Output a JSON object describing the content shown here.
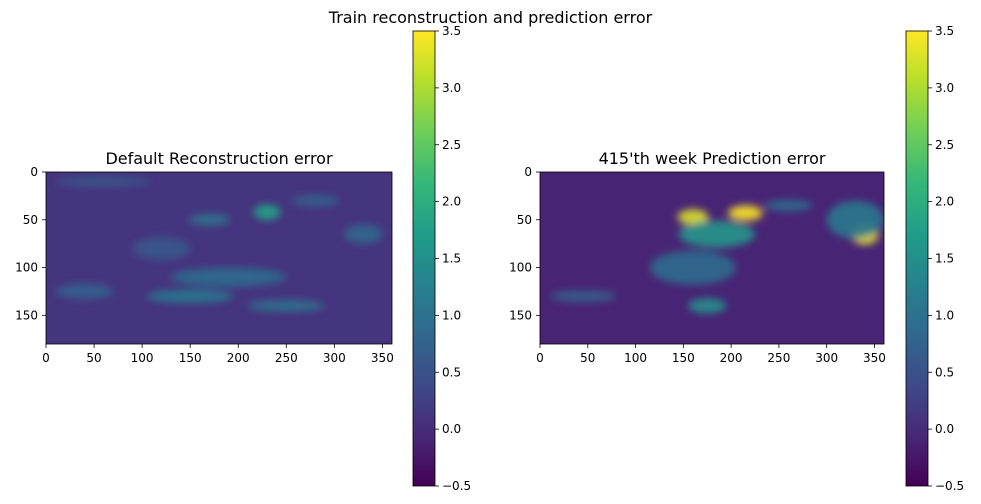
{
  "figure": {
    "suptitle": "Train reconstruction and prediction error"
  },
  "chart_data": [
    {
      "type": "heatmap",
      "title": "Default Reconstruction error",
      "xlabel": "",
      "ylabel": "",
      "x_ticks": [
        0,
        50,
        100,
        150,
        200,
        250,
        300,
        350
      ],
      "y_ticks": [
        0,
        50,
        100,
        150
      ],
      "xlim": [
        0,
        360
      ],
      "ylim": [
        180,
        0
      ],
      "colormap": "viridis",
      "colorbar": {
        "min": -0.5,
        "max": 3.5,
        "ticks": [
          -0.5,
          0.0,
          0.5,
          1.0,
          1.5,
          2.0,
          2.5,
          3.0,
          3.5
        ]
      },
      "background_value": 0.1,
      "hotspots": [
        {
          "x": 230,
          "y": 42,
          "rx": 14,
          "ry": 8,
          "value": 1.8
        },
        {
          "x": 170,
          "y": 50,
          "rx": 22,
          "ry": 6,
          "value": 1.0
        },
        {
          "x": 190,
          "y": 110,
          "rx": 60,
          "ry": 10,
          "value": 0.9
        },
        {
          "x": 150,
          "y": 130,
          "rx": 45,
          "ry": 7,
          "value": 1.1
        },
        {
          "x": 250,
          "y": 140,
          "rx": 40,
          "ry": 6,
          "value": 1.0
        },
        {
          "x": 120,
          "y": 80,
          "rx": 30,
          "ry": 12,
          "value": 0.6
        },
        {
          "x": 330,
          "y": 65,
          "rx": 20,
          "ry": 10,
          "value": 0.8
        },
        {
          "x": 280,
          "y": 30,
          "rx": 25,
          "ry": 6,
          "value": 0.7
        },
        {
          "x": 40,
          "y": 125,
          "rx": 30,
          "ry": 8,
          "value": 0.7
        },
        {
          "x": 60,
          "y": 10,
          "rx": 50,
          "ry": 5,
          "value": 0.6
        }
      ]
    },
    {
      "type": "heatmap",
      "title": "415'th week Prediction error",
      "xlabel": "",
      "ylabel": "",
      "x_ticks": [
        0,
        50,
        100,
        150,
        200,
        250,
        300,
        350
      ],
      "y_ticks": [
        0,
        50,
        100,
        150
      ],
      "xlim": [
        0,
        360
      ],
      "ylim": [
        180,
        0
      ],
      "colormap": "viridis",
      "colorbar": {
        "min": -0.5,
        "max": 3.5,
        "ticks": [
          -0.5,
          0.0,
          0.5,
          1.0,
          1.5,
          2.0,
          2.5,
          3.0,
          3.5
        ]
      },
      "background_value": -0.1,
      "hotspots": [
        {
          "x": 215,
          "y": 43,
          "rx": 18,
          "ry": 8,
          "value": 3.5
        },
        {
          "x": 160,
          "y": 47,
          "rx": 16,
          "ry": 8,
          "value": 3.3
        },
        {
          "x": 340,
          "y": 66,
          "rx": 14,
          "ry": 10,
          "value": 3.4
        },
        {
          "x": 185,
          "y": 65,
          "rx": 40,
          "ry": 14,
          "value": 1.6
        },
        {
          "x": 160,
          "y": 100,
          "rx": 45,
          "ry": 18,
          "value": 0.9
        },
        {
          "x": 330,
          "y": 50,
          "rx": 30,
          "ry": 20,
          "value": 1.1
        },
        {
          "x": 175,
          "y": 140,
          "rx": 20,
          "ry": 8,
          "value": 1.5
        },
        {
          "x": 45,
          "y": 130,
          "rx": 35,
          "ry": 6,
          "value": 0.7
        },
        {
          "x": 260,
          "y": 35,
          "rx": 25,
          "ry": 6,
          "value": 0.9
        }
      ]
    }
  ]
}
